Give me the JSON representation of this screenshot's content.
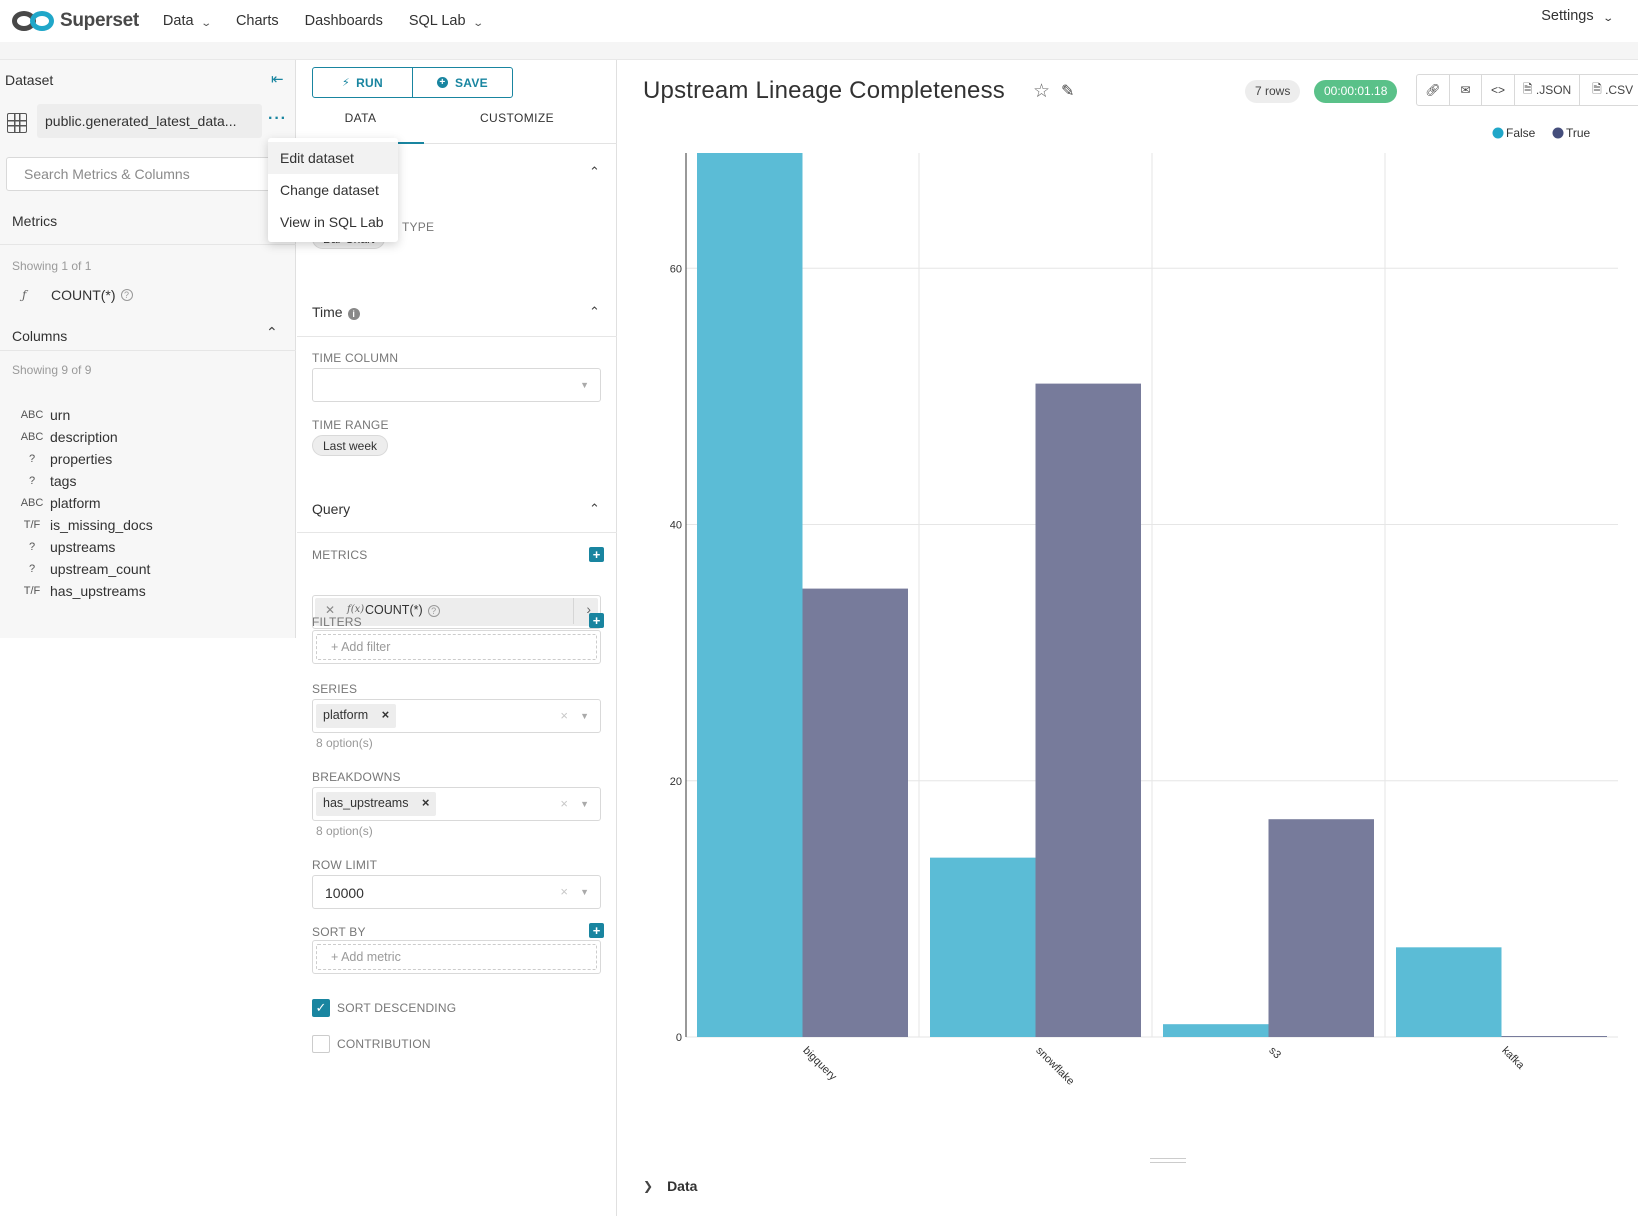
{
  "nav": {
    "brand": "Superset",
    "items": [
      {
        "label": "Data",
        "has_caret": true
      },
      {
        "label": "Charts",
        "has_caret": false
      },
      {
        "label": "Dashboards",
        "has_caret": false
      },
      {
        "label": "SQL Lab",
        "has_caret": true
      }
    ],
    "settings": "Settings"
  },
  "dataset_panel": {
    "title": "Dataset",
    "dataset_name": "public.generated_latest_data...",
    "search_placeholder": "Search Metrics & Columns",
    "metrics_heading": "Metrics",
    "metrics_showing": "Showing 1 of 1",
    "metrics": [
      {
        "label": "COUNT(*)"
      }
    ],
    "columns_heading": "Columns",
    "columns_showing": "Showing 9 of 9",
    "columns": [
      {
        "type": "ABC",
        "name": "urn"
      },
      {
        "type": "ABC",
        "name": "description"
      },
      {
        "type": "?",
        "name": "properties"
      },
      {
        "type": "?",
        "name": "tags"
      },
      {
        "type": "ABC",
        "name": "platform"
      },
      {
        "type": "T/F",
        "name": "is_missing_docs"
      },
      {
        "type": "?",
        "name": "upstreams"
      },
      {
        "type": "?",
        "name": "upstream_count"
      },
      {
        "type": "T/F",
        "name": "has_upstreams"
      }
    ]
  },
  "dataset_menu": {
    "items": [
      "Edit dataset",
      "Change dataset",
      "View in SQL Lab"
    ]
  },
  "control_panel": {
    "run_label": "RUN",
    "save_label": "SAVE",
    "tab_data": "DATA",
    "tab_customize": "CUSTOMIZE",
    "viz_type_label": "TYPE",
    "viz_type_value": "Bar Chart",
    "time_section": "Time",
    "time_column_label": "TIME COLUMN",
    "time_range_label": "TIME RANGE",
    "time_range_value": "Last week",
    "query_section": "Query",
    "metrics_label": "METRICS",
    "metric_value": "COUNT(*)",
    "filters_label": "FILTERS",
    "filters_placeholder": "Add filter",
    "series_label": "SERIES",
    "series_value": "platform",
    "series_options": "8 option(s)",
    "breakdowns_label": "BREAKDOWNS",
    "breakdowns_value": "has_upstreams",
    "breakdowns_options": "8 option(s)",
    "row_limit_label": "ROW LIMIT",
    "row_limit_value": "10000",
    "sort_by_label": "SORT BY",
    "sort_by_placeholder": "Add metric",
    "sort_descending_label": "SORT DESCENDING",
    "sort_descending_checked": true,
    "contribution_label": "CONTRIBUTION",
    "contribution_checked": false
  },
  "chart_panel": {
    "title": "Upstream Lineage Completeness",
    "rows_badge": "7 rows",
    "timer_badge": "00:00:01.18",
    "actions": [
      {
        "icon": "link-icon",
        "label": ""
      },
      {
        "icon": "mail-icon",
        "label": ""
      },
      {
        "icon": "embed-code-icon",
        "label": ""
      },
      {
        "icon": "json-file-icon",
        "label": ".JSON"
      },
      {
        "icon": "csv-file-icon",
        "label": ".CSV"
      }
    ],
    "data_toggle": "Data"
  },
  "chart_data": {
    "type": "bar",
    "categories": [
      "bigquery",
      "snowflake",
      "s3",
      "kafka"
    ],
    "series": [
      {
        "name": "False",
        "color": "#5bbcd6",
        "values": [
          69,
          14,
          1,
          7
        ]
      },
      {
        "name": "True",
        "color": "#777b9b",
        "values": [
          35,
          51,
          17,
          0
        ]
      }
    ],
    "legend_colors": {
      "False": "#20a7c9",
      "True": "#454e7c"
    },
    "yticks": [
      0,
      20,
      40,
      60
    ],
    "ylim": [
      0,
      69
    ],
    "legend_position": "top-right",
    "grid": true
  }
}
